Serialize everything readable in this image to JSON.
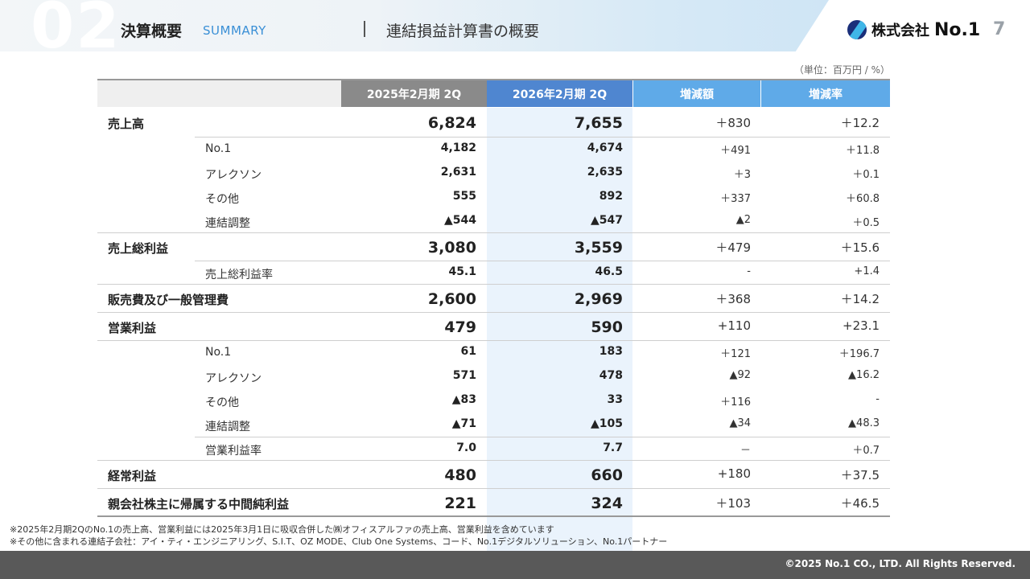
{
  "header": {
    "section_number": "02",
    "section_title": "決算概要",
    "section_subtitle": "SUMMARY",
    "page_heading": "連結損益計算書の概要",
    "logo_text": "株式会社",
    "logo_no": "No.1",
    "page_number": "7"
  },
  "unit_note": "（単位：百万円 / %）",
  "table": {
    "headers": [
      "2025年2月期 2Q",
      "2026年2月期 2Q",
      "増減額",
      "増減率"
    ],
    "rows": [
      {
        "label": "売上高",
        "v1": "6,824",
        "v2": "7,655",
        "v3": "＋830",
        "v4": "＋12.2"
      },
      {
        "label": "No.1",
        "v1": "4,182",
        "v2": "4,674",
        "v3": "＋491",
        "v4": "＋11.8"
      },
      {
        "label": "アレクソン",
        "v1": "2,631",
        "v2": "2,635",
        "v3": "＋3",
        "v4": "＋0.1"
      },
      {
        "label": "その他",
        "v1": "555",
        "v2": "892",
        "v3": "＋337",
        "v4": "＋60.8"
      },
      {
        "label": "連結調整",
        "v1": "▲544",
        "v2": "▲547",
        "v3": "▲2",
        "v4": "＋0.5"
      },
      {
        "label": "売上総利益",
        "v1": "3,080",
        "v2": "3,559",
        "v3": "＋479",
        "v4": "＋15.6"
      },
      {
        "label": "売上総利益率",
        "v1": "45.1",
        "v2": "46.5",
        "v3": "-",
        "v4": "+1.4"
      },
      {
        "label": "販売費及び一般管理費",
        "v1": "2,600",
        "v2": "2,969",
        "v3": "＋368",
        "v4": "＋14.2"
      },
      {
        "label": "営業利益",
        "v1": "479",
        "v2": "590",
        "v3": "+110",
        "v4": "+23.1"
      },
      {
        "label": "No.1",
        "v1": "61",
        "v2": "183",
        "v3": "＋121",
        "v4": "＋196.7"
      },
      {
        "label": "アレクソン",
        "v1": "571",
        "v2": "478",
        "v3": "▲92",
        "v4": "▲16.2"
      },
      {
        "label": "その他",
        "v1": "▲83",
        "v2": "33",
        "v3": "＋116",
        "v4": "-"
      },
      {
        "label": "連結調整",
        "v1": "▲71",
        "v2": "▲105",
        "v3": "▲34",
        "v4": "▲48.3"
      },
      {
        "label": "営業利益率",
        "v1": "7.0",
        "v2": "7.7",
        "v3": "－",
        "v4": "＋0.7"
      },
      {
        "label": "経常利益",
        "v1": "480",
        "v2": "660",
        "v3": "+180",
        "v4": "＋37.5"
      },
      {
        "label": "親会社株主に帰属する中間純利益",
        "v1": "221",
        "v2": "324",
        "v3": "＋103",
        "v4": "＋46.5"
      }
    ]
  },
  "notes": [
    "※2025年2月期2QのNo.1の売上高、営業利益には2025年3月1日に吸収合併した㈱オフィスアルファの売上高、営業利益を含めています",
    "※その他に含まれる連結子会社：アイ・ティ・エンジニアリング、S.I.T、OZ MODE、Club One Systems、コード、No.1デジタルソリューション、No.1パートナー"
  ],
  "footer": {
    "copyright": "©2025 No.1 CO., LTD. All Rights Reserved."
  }
}
